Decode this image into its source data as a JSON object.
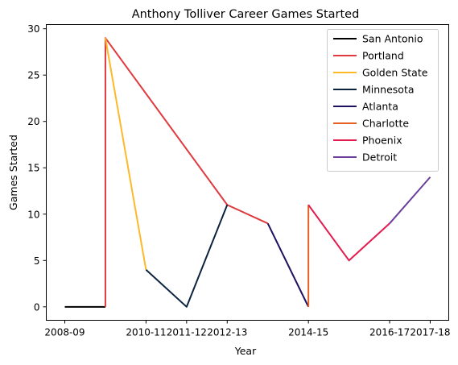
{
  "chart_data": {
    "type": "line",
    "title": "Anthony Tolliver Career Games Started",
    "xlabel": "Year",
    "ylabel": "Games Started",
    "x_categories": [
      "2008-09",
      "2009-10",
      "2010-11",
      "2011-12",
      "2012-13",
      "2013-14",
      "2014-15",
      "2015-16",
      "2016-17",
      "2017-18"
    ],
    "x_ticks": [
      "2008-09",
      "2010-11",
      "2011-12",
      "2012-13",
      "2014-15",
      "2016-17",
      "2017-18"
    ],
    "y_ticks": [
      0,
      5,
      10,
      15,
      20,
      25,
      30
    ],
    "ylim": [
      -1.45,
      30.45
    ],
    "grid": false,
    "legend_position": "top-right",
    "series": [
      {
        "name": "San Antonio",
        "color": "#000000",
        "points": [
          [
            "2008-09",
            0
          ],
          [
            "2009-10",
            0
          ]
        ]
      },
      {
        "name": "Portland",
        "color": "#e03a3e",
        "points": [
          [
            "2009-10",
            0
          ],
          [
            "2009-10",
            29
          ],
          [
            "2012-13",
            11
          ],
          [
            "2013-14",
            9
          ]
        ]
      },
      {
        "name": "Golden State",
        "color": "#fdb927",
        "points": [
          [
            "2009-10",
            29
          ],
          [
            "2010-11",
            4
          ]
        ]
      },
      {
        "name": "Minnesota",
        "color": "#0c2340",
        "points": [
          [
            "2010-11",
            4
          ],
          [
            "2011-12",
            0
          ],
          [
            "2012-13",
            11
          ]
        ]
      },
      {
        "name": "Atlanta",
        "color": "#1d1160",
        "points": [
          [
            "2013-14",
            9
          ],
          [
            "2014-15",
            0
          ]
        ]
      },
      {
        "name": "Charlotte",
        "color": "#e56020",
        "points": [
          [
            "2014-15",
            0
          ],
          [
            "2014-15",
            11
          ]
        ]
      },
      {
        "name": "Phoenix",
        "color": "#e31b4f",
        "points": [
          [
            "2014-15",
            11
          ],
          [
            "2015-16",
            5
          ],
          [
            "2016-17",
            9
          ]
        ]
      },
      {
        "name": "Detroit",
        "color": "#6a3d9a",
        "points": [
          [
            "2016-17",
            9
          ],
          [
            "2017-18",
            14
          ]
        ]
      }
    ]
  }
}
